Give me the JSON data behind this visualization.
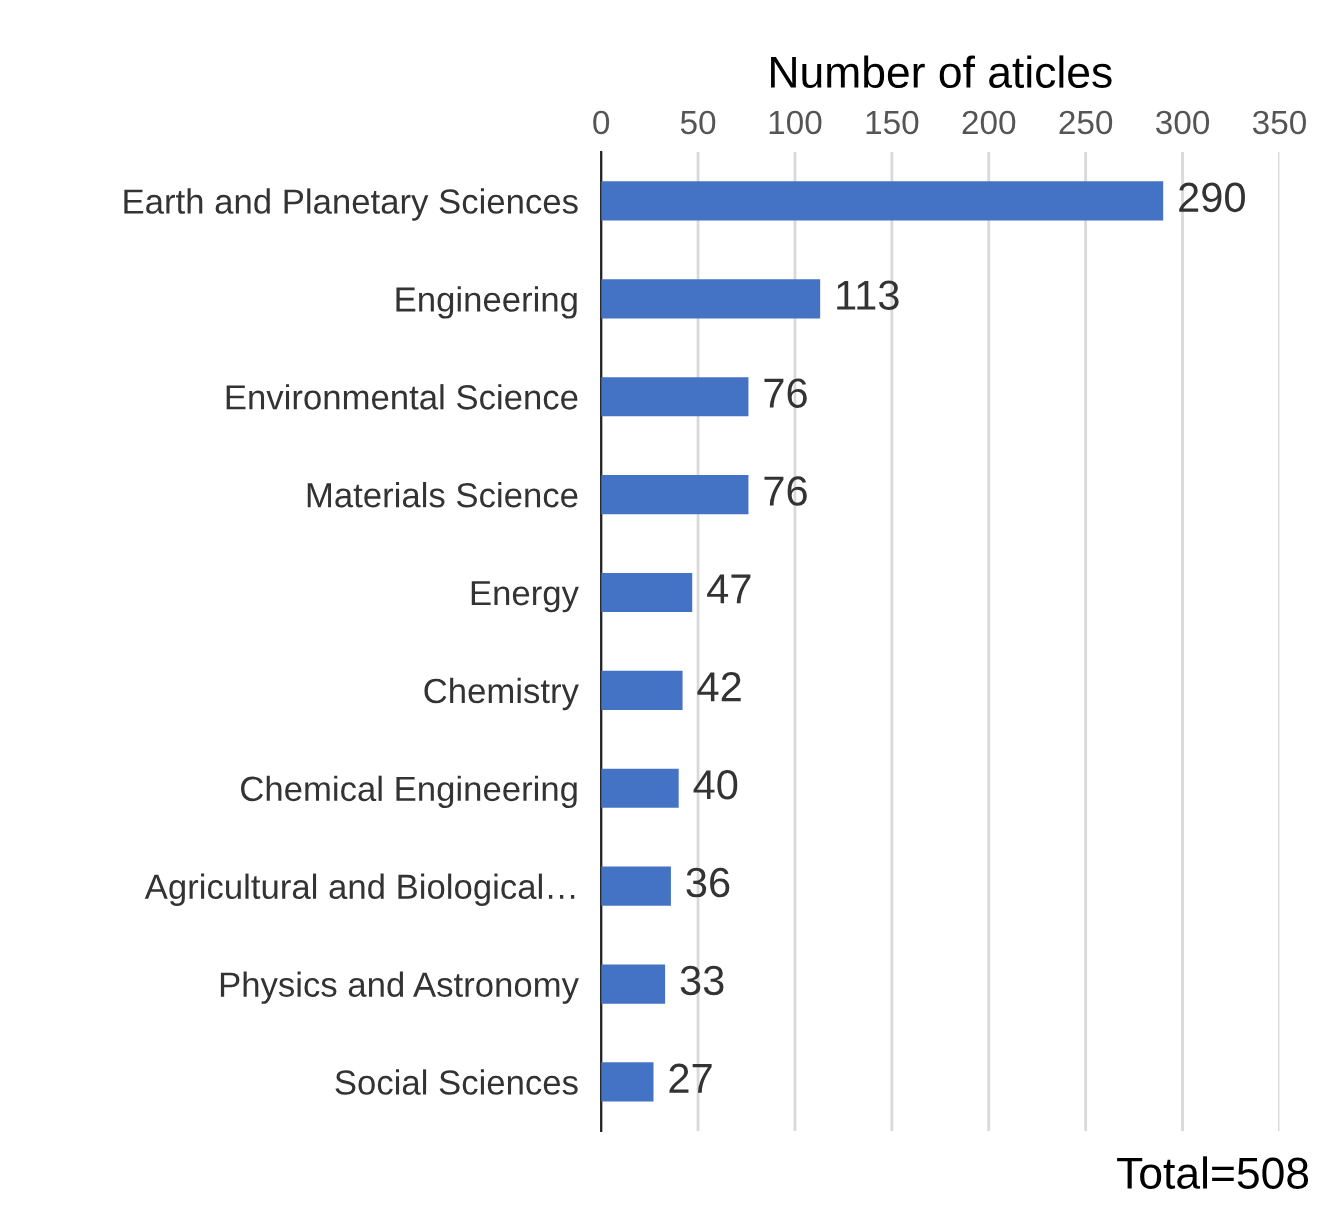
{
  "chart_data": {
    "type": "bar",
    "orientation": "horizontal",
    "xlabel": "Number of aticles",
    "categories": [
      "Earth and Planetary Sciences",
      "Engineering",
      "Environmental Science",
      "Materials Science",
      "Energy",
      "Chemistry",
      "Chemical Engineering",
      "Agricultural and Biological…",
      "Physics and Astronomy",
      "Social Sciences"
    ],
    "values": [
      290,
      113,
      76,
      76,
      47,
      42,
      40,
      36,
      33,
      27
    ],
    "color": "#4472c4",
    "xlim": [
      0,
      350
    ],
    "xticks": [
      0,
      50,
      100,
      150,
      200,
      250,
      300,
      350
    ],
    "grid": "x",
    "data_labels": true,
    "annotations": [
      "Total=508"
    ]
  }
}
